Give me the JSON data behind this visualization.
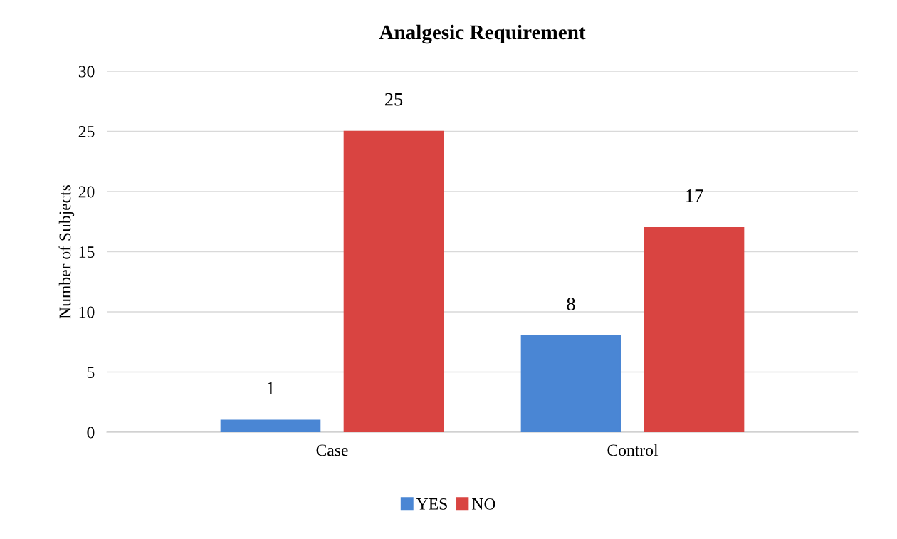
{
  "chart_data": {
    "type": "bar",
    "title": "Analgesic Requirement",
    "ylabel": "Number of Subjects",
    "categories": [
      "Case",
      "Control"
    ],
    "series": [
      {
        "name": "YES",
        "color": "#4a86d4",
        "values": [
          1,
          8
        ]
      },
      {
        "name": "NO",
        "color": "#d94441",
        "values": [
          25,
          17
        ]
      }
    ],
    "ylim": [
      0,
      30
    ],
    "yticks": [
      0,
      5,
      10,
      15,
      20,
      25,
      30
    ],
    "grid": "y",
    "legend": "bottom",
    "data_labels": true
  }
}
